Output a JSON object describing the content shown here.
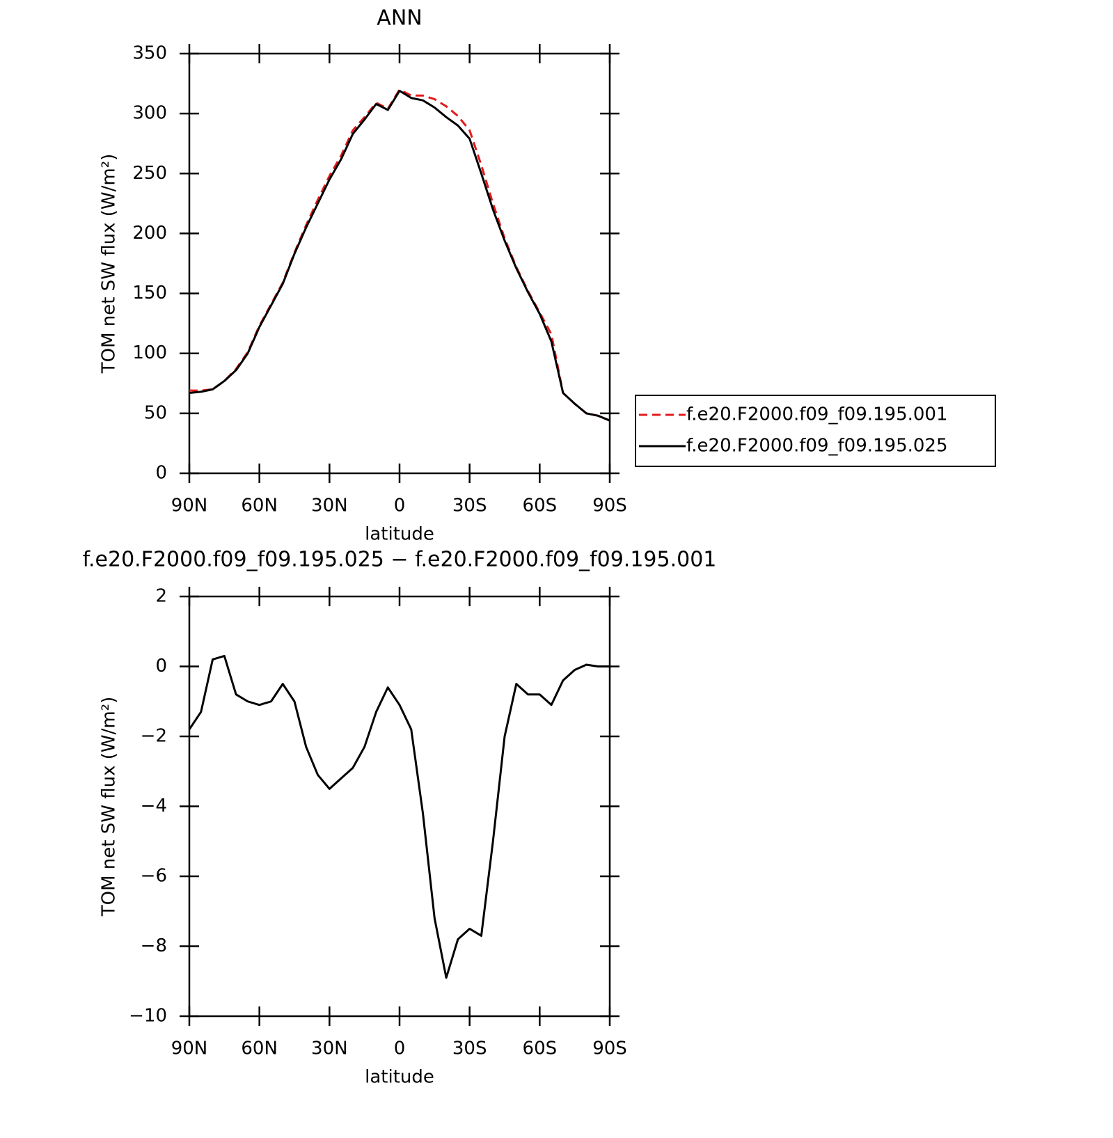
{
  "chart_data": [
    {
      "type": "line",
      "title": "ANN",
      "xlabel": "latitude",
      "ylabel": "TOM net SW flux (W/m²)",
      "x": [
        90,
        85,
        80,
        75,
        70,
        65,
        60,
        55,
        50,
        45,
        40,
        35,
        30,
        25,
        20,
        15,
        10,
        5,
        0,
        -5,
        -10,
        -15,
        -20,
        -25,
        -30,
        -35,
        -40,
        -45,
        -50,
        -55,
        -60,
        -65,
        -70,
        -75,
        -80,
        -85,
        -90
      ],
      "series": [
        {
          "name": "f.e20.F2000.f09_f09.195.001",
          "color": "#e41a1c",
          "dashed": true,
          "values": [
            69,
            69,
            70,
            77,
            87,
            101,
            123,
            141,
            159,
            184,
            207,
            228,
            248,
            265,
            286,
            297,
            309,
            304,
            320,
            315,
            315,
            312,
            306,
            298,
            286,
            257,
            225,
            196,
            172,
            152,
            134,
            116,
            67,
            58,
            50,
            48,
            44
          ]
        },
        {
          "name": "f.e20.F2000.f09_f09.195.025",
          "color": "#000000",
          "dashed": false,
          "values": [
            67,
            68,
            70,
            77,
            86,
            100,
            122,
            140,
            158,
            183,
            205,
            225,
            245,
            262,
            283,
            295,
            308,
            303,
            319,
            313,
            311,
            305,
            297,
            290,
            279,
            250,
            220,
            194,
            171,
            151,
            133,
            110,
            67,
            58,
            50,
            48,
            44
          ]
        }
      ],
      "xlim": [
        90,
        -90
      ],
      "xticks": [
        {
          "value": 90,
          "label": "90N"
        },
        {
          "value": 60,
          "label": "60N"
        },
        {
          "value": 30,
          "label": "30N"
        },
        0,
        {
          "value": -30,
          "label": "30S"
        },
        {
          "value": -60,
          "label": "60S"
        },
        {
          "value": -90,
          "label": "90S"
        }
      ],
      "ylim": [
        0,
        350
      ],
      "yticks": [
        0,
        50,
        100,
        150,
        200,
        250,
        300,
        350
      ],
      "legend": "right"
    },
    {
      "type": "line",
      "title": "f.e20.F2000.f09_f09.195.025 − f.e20.F2000.f09_f09.195.001",
      "xlabel": "latitude",
      "ylabel": "TOM net SW flux (W/m²)",
      "x": [
        90,
        85,
        80,
        75,
        70,
        65,
        60,
        55,
        50,
        45,
        40,
        35,
        30,
        25,
        20,
        15,
        10,
        5,
        0,
        -5,
        -10,
        -15,
        -20,
        -25,
        -30,
        -35,
        -40,
        -45,
        -50,
        -55,
        -60,
        -65,
        -70,
        -75,
        -80,
        -85,
        -90
      ],
      "series": [
        {
          "color": "#000000",
          "dashed": false,
          "values": [
            -1.8,
            -1.3,
            0.2,
            0.3,
            -0.8,
            -1.0,
            -1.1,
            -1.0,
            -0.5,
            -1.0,
            -2.3,
            -3.1,
            -3.5,
            -3.2,
            -2.9,
            -2.3,
            -1.3,
            -0.6,
            -1.1,
            -1.8,
            -4.2,
            -7.2,
            -8.9,
            -7.8,
            -7.5,
            -7.7,
            -5.0,
            -2.0,
            -0.5,
            -0.8,
            -0.8,
            -1.1,
            -0.4,
            -0.1,
            0.05,
            0.0,
            0.0
          ]
        }
      ],
      "xlim": [
        90,
        -90
      ],
      "xticks": [
        {
          "value": 90,
          "label": "90N"
        },
        {
          "value": 60,
          "label": "60N"
        },
        {
          "value": 30,
          "label": "30N"
        },
        0,
        {
          "value": -30,
          "label": "30S"
        },
        {
          "value": -60,
          "label": "60S"
        },
        {
          "value": -90,
          "label": "90S"
        }
      ],
      "ylim": [
        -10,
        2
      ],
      "yticks": [
        {
          "value": -10,
          "label": "−10"
        },
        {
          "value": -8,
          "label": "−8"
        },
        {
          "value": -6,
          "label": "−6"
        },
        {
          "value": -4,
          "label": "−4"
        },
        {
          "value": -2,
          "label": "−2"
        },
        0,
        2
      ]
    }
  ]
}
